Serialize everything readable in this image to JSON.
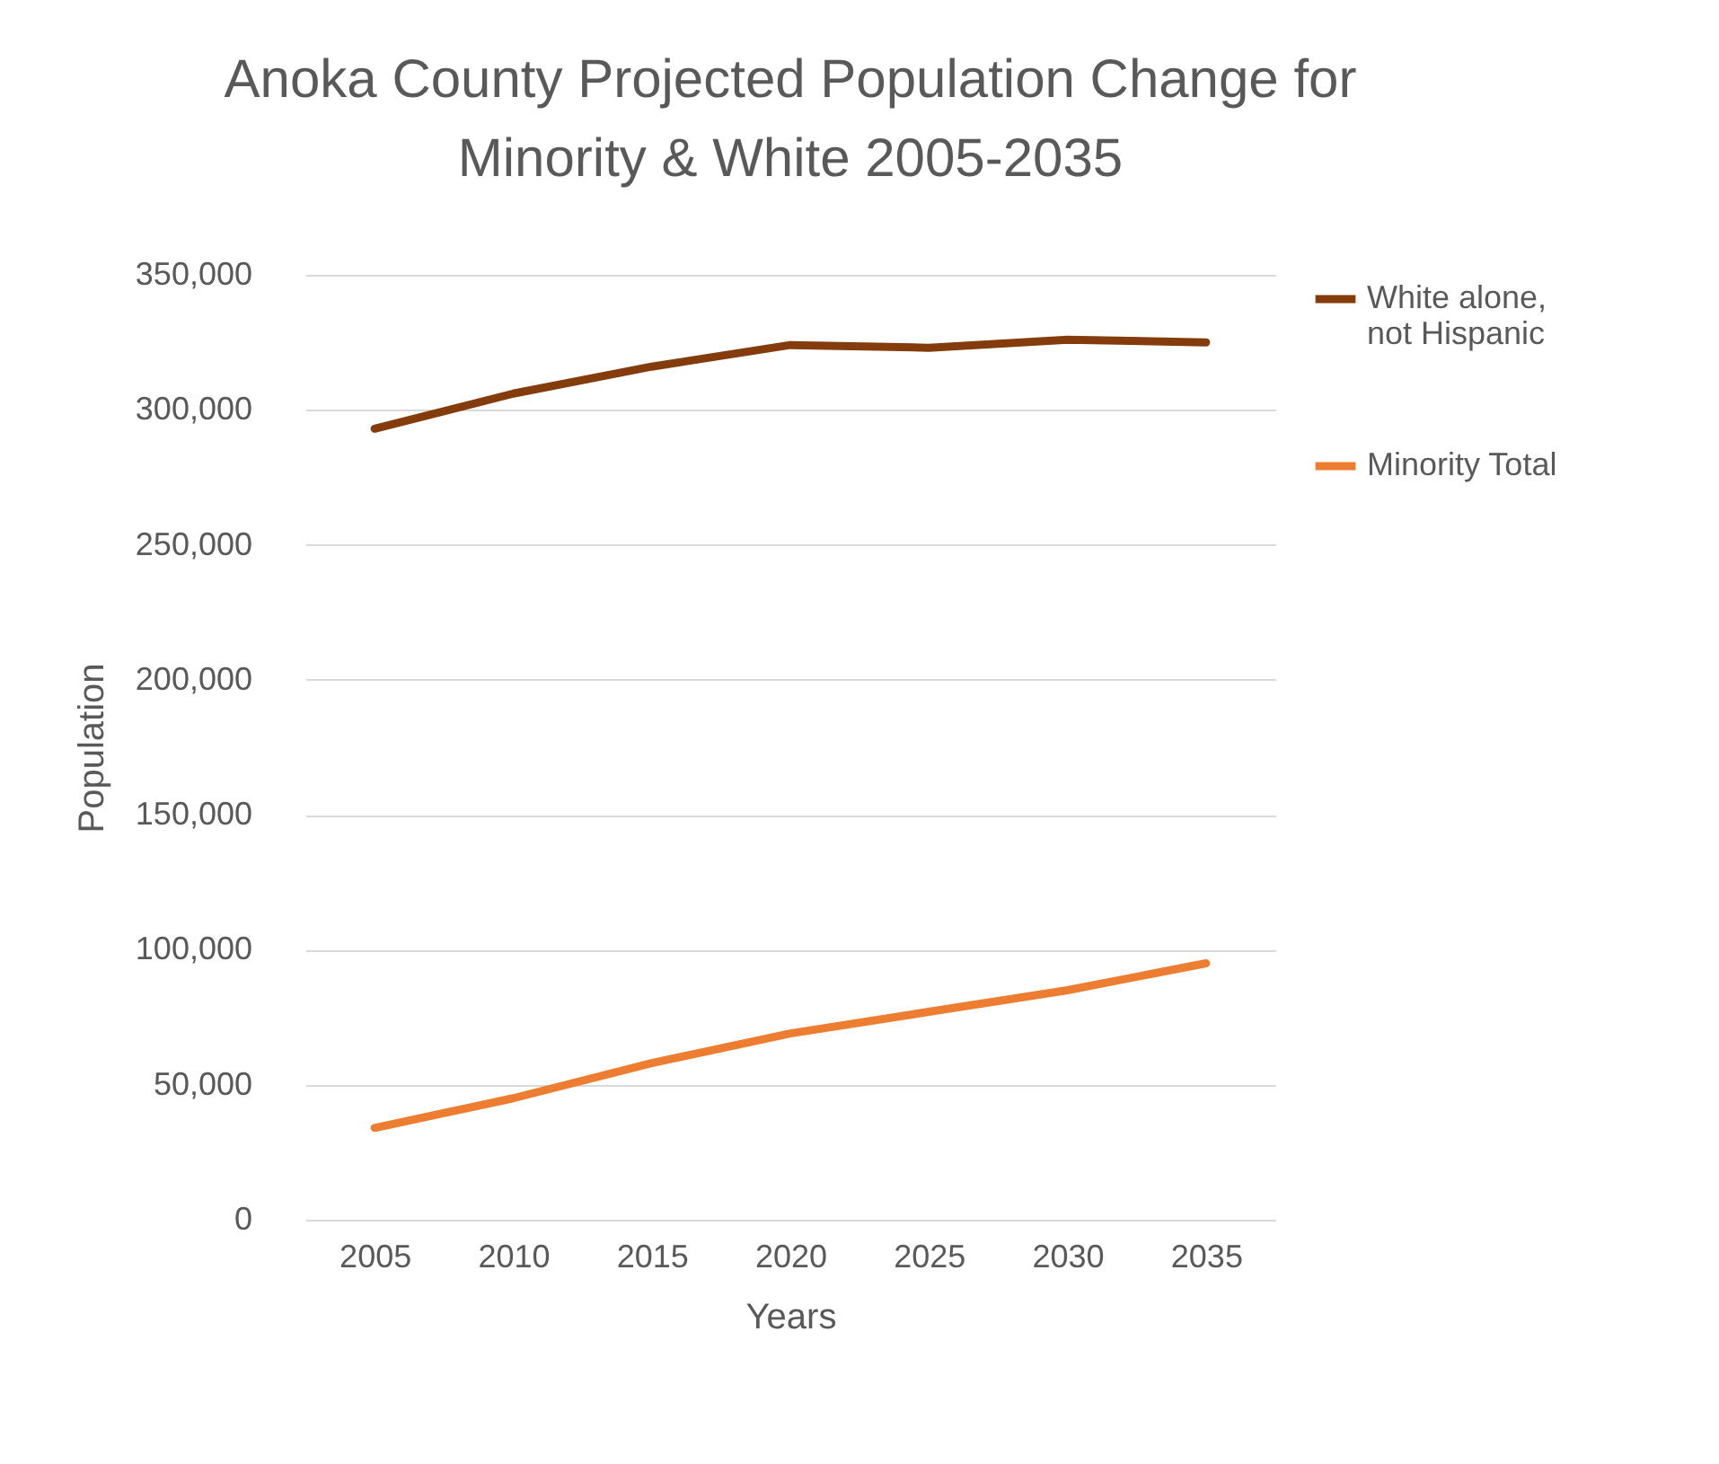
{
  "chart_data": {
    "type": "line",
    "title": "Anoka County Projected Population Change for Minority & White 2005-2035",
    "xlabel": "Years",
    "ylabel": "Population",
    "categories": [
      "2005",
      "2010",
      "2015",
      "2020",
      "2025",
      "2030",
      "2035"
    ],
    "series": [
      {
        "name": "White alone, not Hispanic",
        "color": "#843c0c",
        "values": [
          293000,
          306000,
          316000,
          324000,
          323000,
          326000,
          325000
        ]
      },
      {
        "name": "Minority Total",
        "color": "#ed7d31",
        "values": [
          34000,
          45000,
          58000,
          69000,
          77000,
          85000,
          95000
        ]
      }
    ],
    "ylim": [
      0,
      350000
    ],
    "yticks": [
      0,
      {
        "value": 50000,
        "label": "50,000"
      },
      {
        "value": 100000,
        "label": "100,000"
      },
      {
        "value": 150000,
        "label": "150,000"
      },
      {
        "value": 200000,
        "label": "200,000"
      },
      {
        "value": 250000,
        "label": "250,000"
      },
      {
        "value": 300000,
        "label": "300,000"
      },
      {
        "value": 350000,
        "label": "350,000"
      }
    ],
    "grid": "y",
    "legend": "right",
    "marker": "none",
    "line_style": "solid"
  }
}
